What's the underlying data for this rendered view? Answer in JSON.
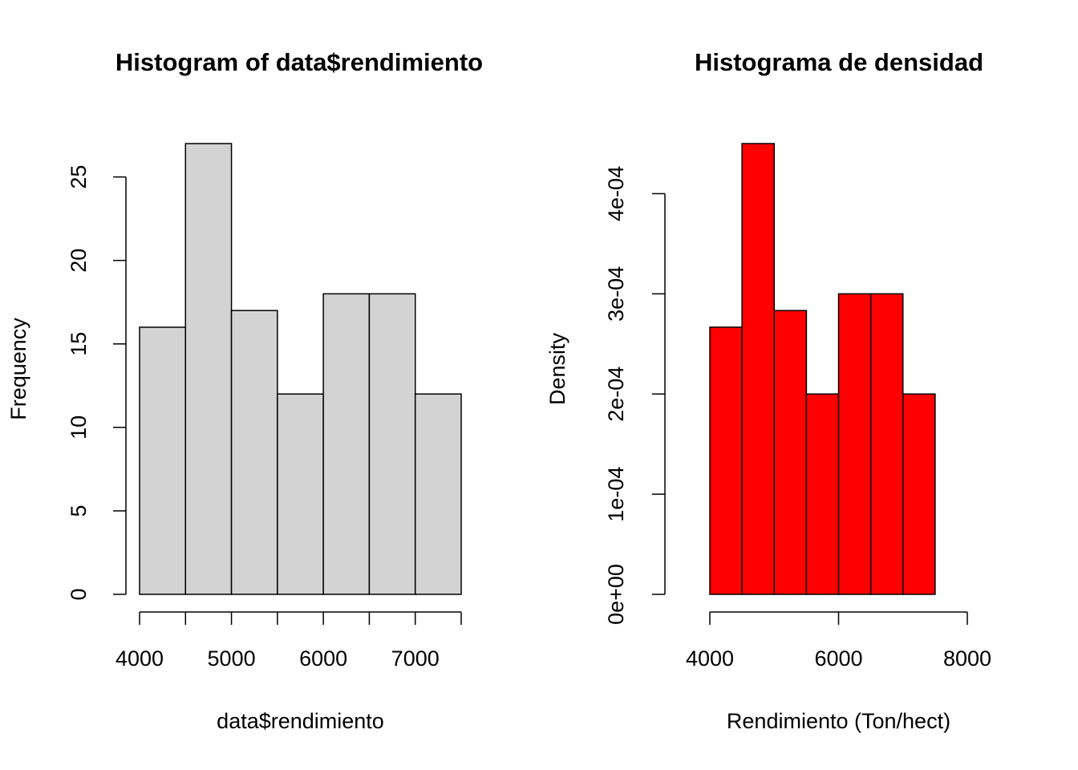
{
  "chart_data": [
    {
      "type": "histogram",
      "title": "Histogram of data$rendimiento",
      "xlabel": "data$rendimiento",
      "ylabel": "Frequency",
      "bins": [
        4000,
        4500,
        5000,
        5500,
        6000,
        6500,
        7000,
        7500
      ],
      "values": [
        16,
        27,
        17,
        12,
        18,
        18,
        12
      ],
      "color": "#d3d3d3",
      "xlim": [
        4000,
        7500
      ],
      "ylim": [
        0,
        27
      ],
      "xticks": [
        4000,
        5000,
        6000,
        7000
      ],
      "xminor_ticks": [
        4500,
        5500,
        6500,
        7500
      ],
      "yticks": [
        0,
        5,
        10,
        15,
        20,
        25
      ]
    },
    {
      "type": "histogram",
      "title": "Histograma de densidad",
      "xlabel": "Rendimiento (Ton/hect)",
      "ylabel": "Density",
      "bins": [
        4000,
        4500,
        5000,
        5500,
        6000,
        6500,
        7000,
        7500
      ],
      "values": [
        0.0002667,
        0.00045,
        0.0002833,
        0.0002,
        0.0003,
        0.0003,
        0.0002
      ],
      "color": "#ff0000",
      "xlim": [
        4000,
        8000
      ],
      "ylim": [
        0,
        0.00045
      ],
      "xticks": [
        4000,
        6000,
        8000
      ],
      "yticks": [
        {
          "value": 0,
          "label": "0e+00"
        },
        {
          "value": 0.0001,
          "label": "1e-04"
        },
        {
          "value": 0.0002,
          "label": "2e-04"
        },
        {
          "value": 0.0003,
          "label": "3e-04"
        },
        {
          "value": 0.0004,
          "label": "4e-04"
        }
      ]
    }
  ]
}
